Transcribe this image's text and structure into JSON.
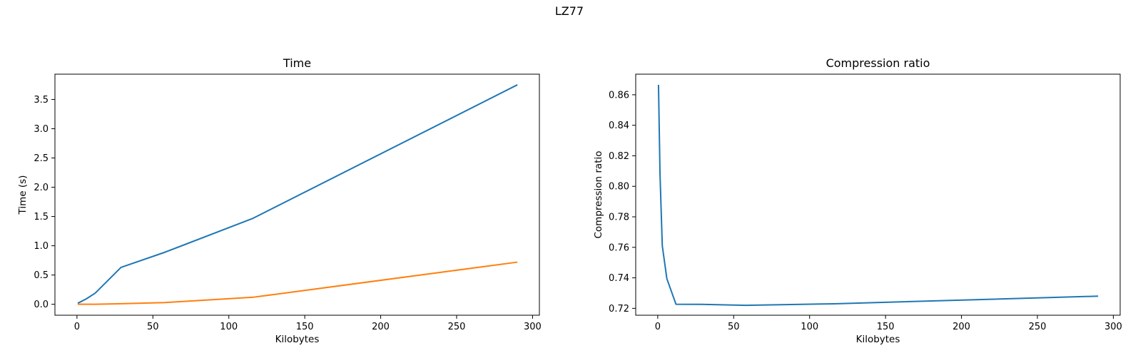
{
  "figure": {
    "suptitle": "LZ77"
  },
  "chart_data": [
    {
      "type": "line",
      "title": "Time",
      "xlabel": "Kilobytes",
      "ylabel": "Time (s)",
      "xlim": [
        -14.5,
        304.5
      ],
      "ylim": [
        -0.187,
        3.932
      ],
      "xticks": [
        0,
        50,
        100,
        150,
        200,
        250,
        300
      ],
      "xtick_labels": [
        "0",
        "50",
        "100",
        "150",
        "200",
        "250",
        "300"
      ],
      "yticks": [
        0.0,
        0.5,
        1.0,
        1.5,
        2.0,
        2.5,
        3.0,
        3.5
      ],
      "ytick_labels": [
        "0.0",
        "0.5",
        "1.0",
        "1.5",
        "2.0",
        "2.5",
        "3.0",
        "3.5"
      ],
      "grid": false,
      "series": [
        {
          "color": "#1f77b4",
          "x": [
            0.5,
            1.5,
            3,
            6,
            12,
            29,
            58,
            116,
            290
          ],
          "y": [
            0.02,
            0.03,
            0.05,
            0.09,
            0.19,
            0.63,
            0.89,
            1.47,
            3.75
          ]
        },
        {
          "color": "#ff7f0e",
          "x": [
            0.5,
            1.5,
            3,
            6,
            12,
            29,
            58,
            116,
            290
          ],
          "y": [
            0.0,
            0.0,
            0.0,
            0.0,
            0.0,
            0.01,
            0.03,
            0.12,
            0.72
          ]
        }
      ]
    },
    {
      "type": "line",
      "title": "Compression ratio",
      "xlabel": "Kilobytes",
      "ylabel": "Compression ratio",
      "xlim": [
        -14.5,
        304.5
      ],
      "ylim": [
        0.7155,
        0.8735
      ],
      "xticks": [
        0,
        50,
        100,
        150,
        200,
        250,
        300
      ],
      "xtick_labels": [
        "0",
        "50",
        "100",
        "150",
        "200",
        "250",
        "300"
      ],
      "yticks": [
        0.72,
        0.74,
        0.76,
        0.78,
        0.8,
        0.82,
        0.84,
        0.86
      ],
      "ytick_labels": [
        "0.72",
        "0.74",
        "0.76",
        "0.78",
        "0.80",
        "0.82",
        "0.84",
        "0.86"
      ],
      "grid": false,
      "series": [
        {
          "color": "#1f77b4",
          "x": [
            0.5,
            1.5,
            3,
            6,
            12,
            29,
            58,
            116,
            290
          ],
          "y": [
            0.8665,
            0.808,
            0.761,
            0.7395,
            0.7227,
            0.7226,
            0.722,
            0.723,
            0.728
          ]
        }
      ]
    }
  ]
}
